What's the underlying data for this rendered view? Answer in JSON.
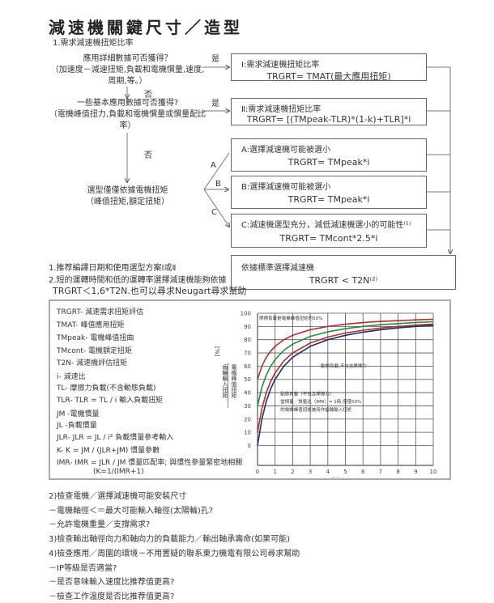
{
  "title": "減速機關鍵尺寸／造型",
  "step1": "1.需求減速機扭矩比率",
  "q1": [
    "應用詳細數據可否獲得？",
    "（加速度－減速扭矩,負載和電機慣量,速度,",
    "周期,等。）"
  ],
  "q2": [
    "一些基本應用數據可否獲得?",
    "（電機峰值扭力,負載和電機慣量或慣量配比",
    "率）"
  ],
  "q3": [
    "選型僅僅依據電機扭矩",
    "（峰值扭矩,額定扭矩）"
  ],
  "yes": "是",
  "no": "否",
  "fork": {
    "a": "A",
    "b": "B",
    "c": "C"
  },
  "boxes": {
    "i": {
      "head": "Ⅰ:需求減速機扭矩比率",
      "formula": "TRGRT= TMAT(最大應用扭矩)"
    },
    "ii": {
      "head": "Ⅱ:需求減速機扭矩比率",
      "formula": "TRGRT= [(TMpeak-TLR)*(1-k)+TLR]*i"
    },
    "a": {
      "head": "A:選擇減速機可能被選小",
      "formula": "TRGRT= TMpeak*i"
    },
    "b": {
      "head": "B:選擇減速機可能被選小",
      "formula": "TRGRT= TMpeak*i"
    },
    "c": {
      "head": "C:減速機選型充分，減低減速機選小的可能性⁽¹⁾",
      "formula": "TRGRT= TMcont*2.5*i"
    },
    "final": {
      "head": "依據標準選擇減速機",
      "formula": "TRGRT < T2N⁽²⁾"
    }
  },
  "notes": [
    "1.推荐編譯日期和使用選型方案Ⅰ或Ⅱ",
    "2.短的運轉時間和低的運轉率選擇減速機能夠依據",
    "TRGRT＜1,6*T2N.也可以尋求Neugart尋求幫助"
  ],
  "legend": [
    "TRGRT- 減速需求扭矩評估",
    "TMAT- 峰值應用扭矩",
    "TMpeak- 電機峰值扭曲",
    "TMcont- 電機額定扭矩",
    "T2N- 減速機評估扭矩",
    "i- 減速比",
    "TL- 摩擦力負載(不含動態負載)",
    "TLR- TLR = TL / i 輸入負載扭矩",
    "JM -電機慣量",
    "JL -負載慣量",
    "JLR- JLR = JL / i² 負載慣量參考輸入",
    "K-  K = JM / (JLR+JM) 慣量參數",
    "IMR- IMR = JLR / JM  慣量匹配率; 與慣性參量緊密地相關",
    "(K=1/(IMR+1)"
  ],
  "chart_data": {
    "type": "line",
    "xlabel": "慣量比率IMR",
    "ylabel_top": "齒輪輸入扭矩",
    "ylabel_bottom": "電機峰值扭矩",
    "yunit": "[%]",
    "xlim": [
      0,
      10
    ],
    "ylim": [
      -15,
      100
    ],
    "xticks": [
      "0",
      "1",
      "2",
      "3",
      "4",
      "5",
      "6",
      "7",
      "8",
      "9",
      "10"
    ],
    "yticks": [
      "0",
      "10",
      "20",
      "30",
      "40",
      "50",
      "60",
      "70",
      "80",
      "90",
      "100"
    ],
    "grid": true,
    "x": [
      0,
      0.25,
      0.5,
      0.75,
      1,
      1.5,
      2,
      3,
      4,
      5,
      6,
      7,
      8,
      9,
      10
    ],
    "series": [
      {
        "color": "#b03030",
        "values": [
          50,
          60,
          66.7,
          71.4,
          75,
          80,
          83.3,
          87.5,
          90,
          91.7,
          92.9,
          93.8,
          94.4,
          95,
          95.5
        ]
      },
      {
        "color": "#2a8a40",
        "values": [
          30,
          44,
          53.3,
          60,
          65,
          72,
          76.7,
          82.5,
          86,
          88.3,
          90,
          91.3,
          92.2,
          93,
          93.6
        ]
      },
      {
        "color": "#b03030",
        "values": [
          10,
          28,
          40,
          48.6,
          55,
          64,
          70,
          77.5,
          82,
          85,
          87.1,
          88.8,
          90,
          91,
          91.8
        ]
      },
      {
        "color": "#22306a",
        "values": [
          0,
          20,
          33.3,
          42.9,
          50,
          60,
          66.7,
          75,
          80,
          83.3,
          85.7,
          87.5,
          88.9,
          90,
          90.9
        ]
      }
    ],
    "annotations": [
      "摩擦負載是電機峰值扭矩的50%",
      "動態負載,不包含摩擦力",
      "動態負載（不包含摩擦力）",
      "當慣量／質量比（IMR）= 1時,僅僅50%",
      "的電機峰值扭矩被用作齒輪輸入扭矩"
    ]
  },
  "checks": [
    "2)檢查電機／選擇減速機可能安裝尺寸",
    "－電機軸徑＜＝最大可能輸入軸徑(太陽輪)孔?",
    "－允許電機重量／支撐需求?",
    "3)檢查輸出軸徑向力和軸向力的負載能力／輸出軸承壽命(如果可能)",
    "4)檢查應用／周圍的環境－不用置疑的聯系東力機電有限公司尋求幫助",
    "－IP等級是否適當?",
    "－是否意味輸入速度比推荐值更高?",
    "－檢查工作溫度是否比推荐值更高?"
  ]
}
